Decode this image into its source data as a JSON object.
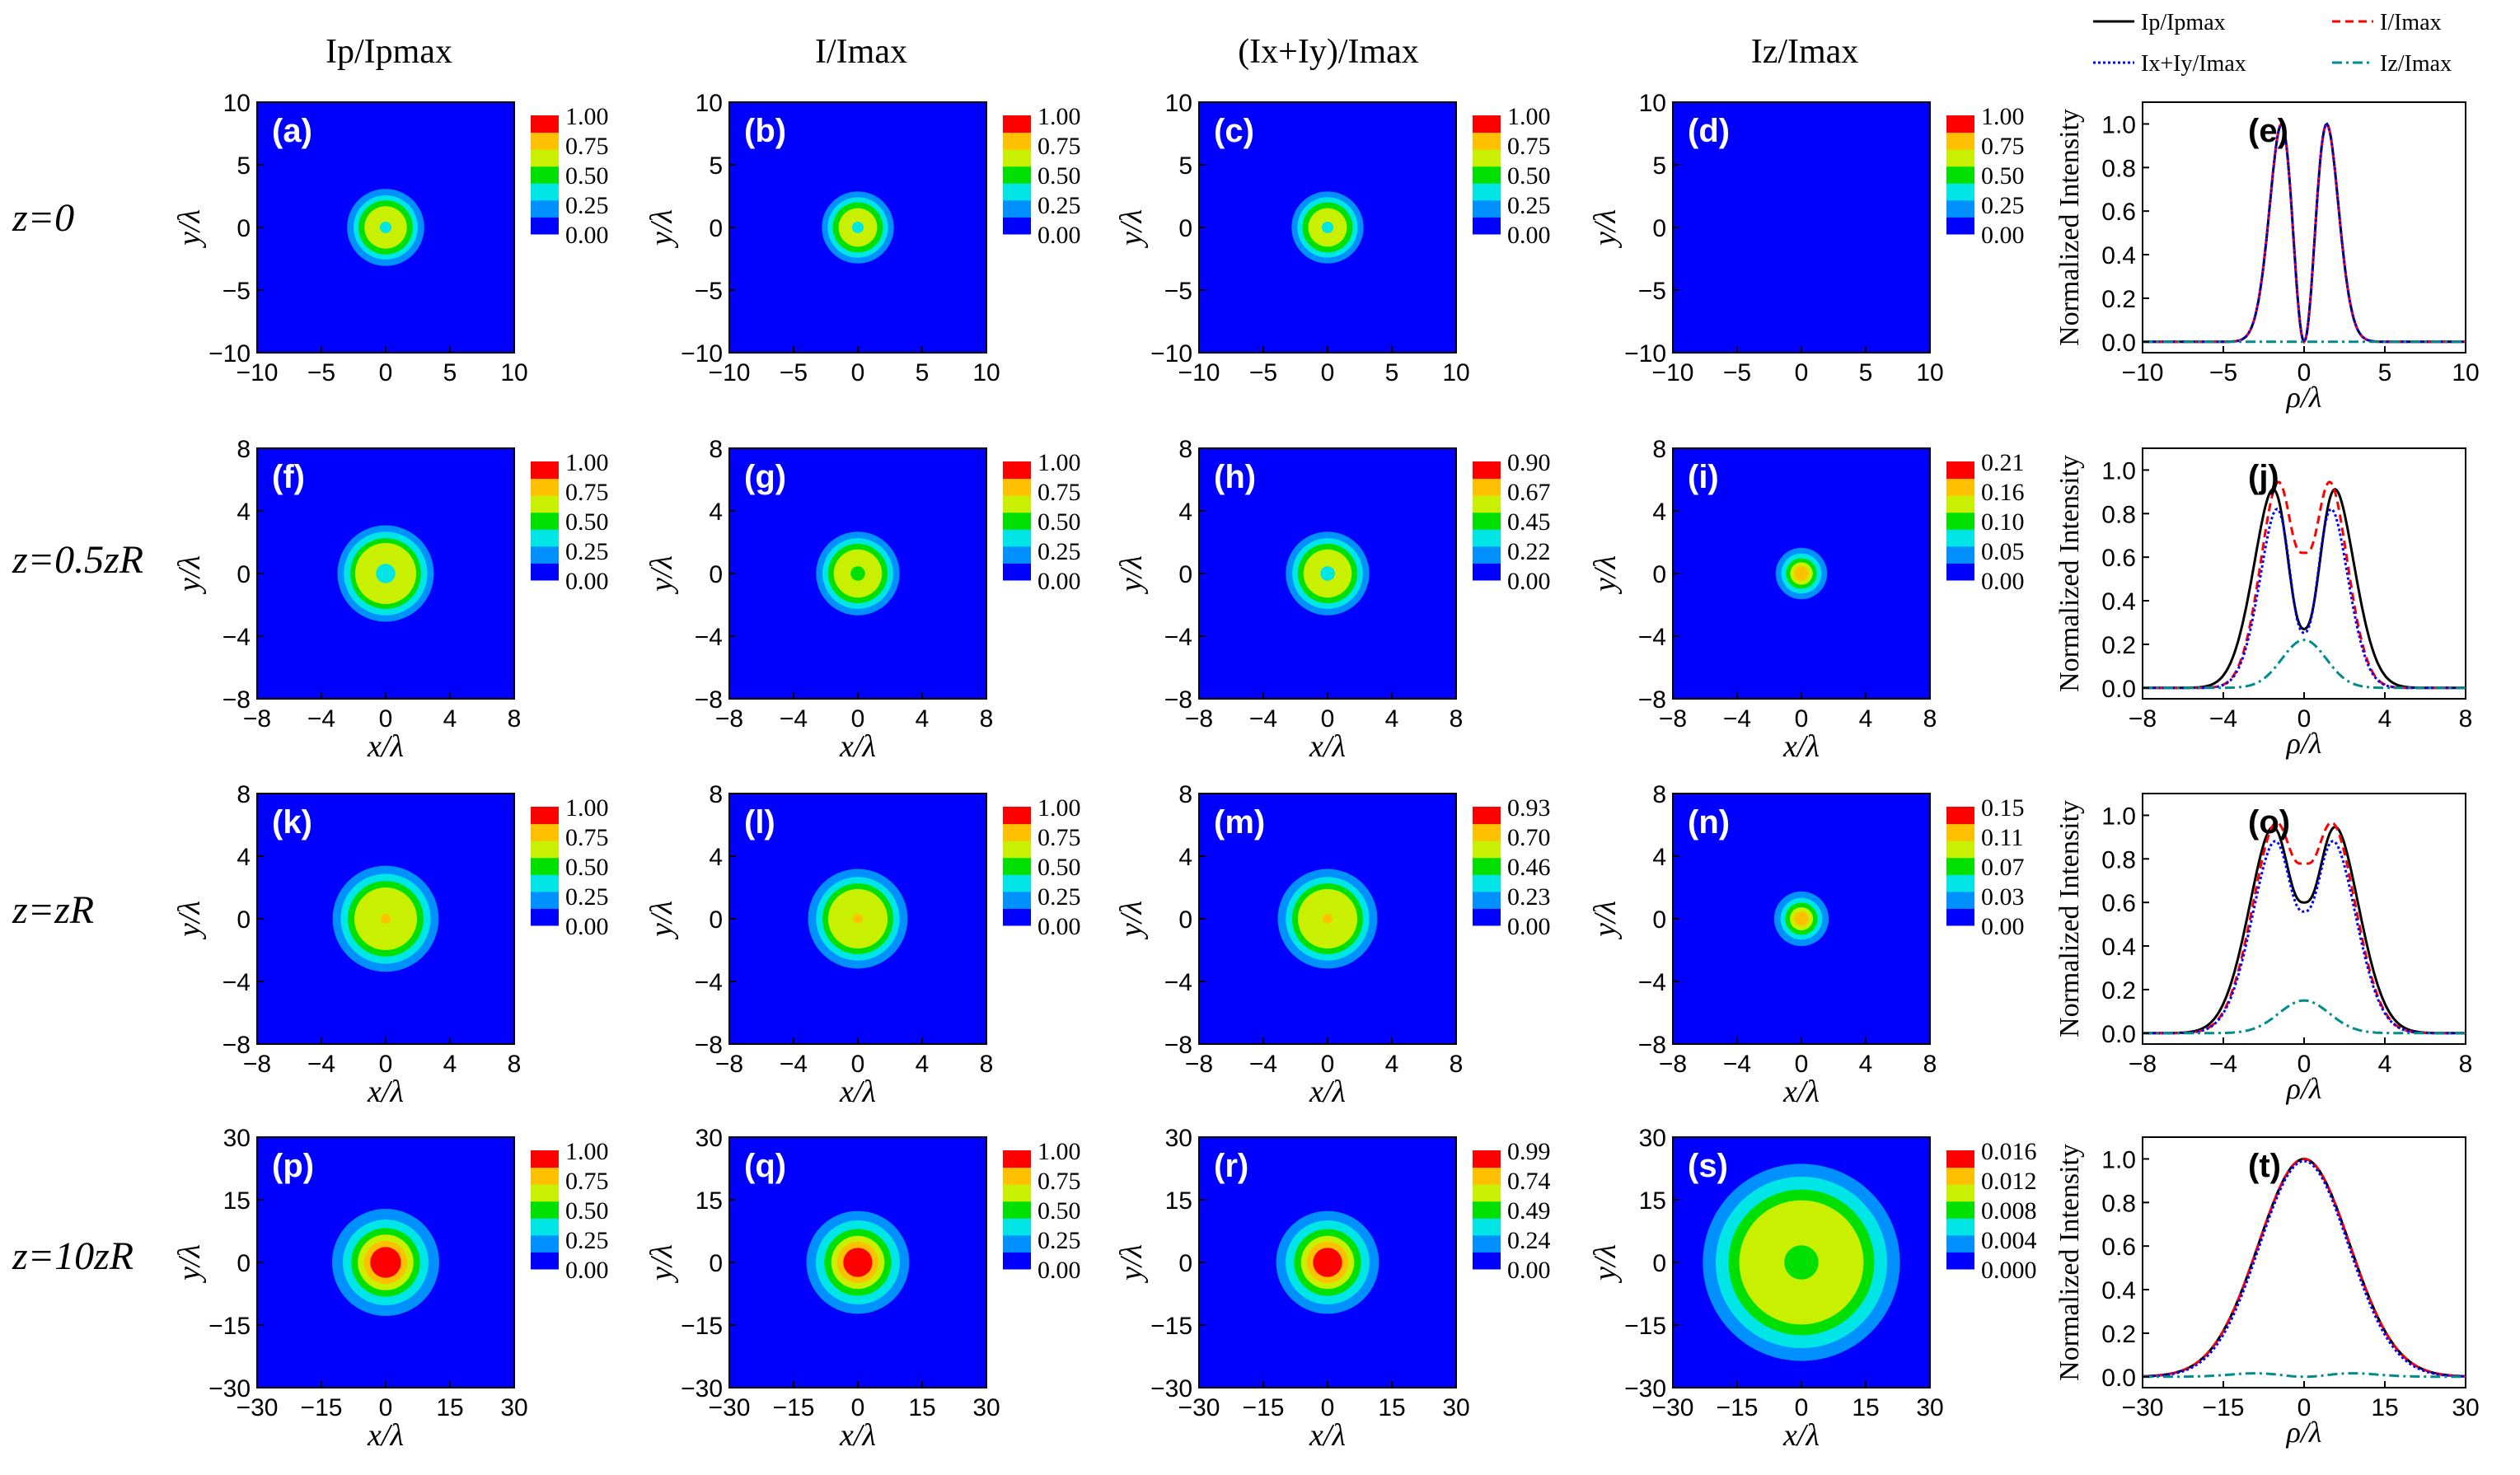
{
  "figure": {
    "column_titles": [
      "Ip/Ipmax",
      "I/Imax",
      "(Ix+Iy)/Imax",
      "Iz/Imax"
    ],
    "row_labels": [
      "z=0",
      "z=0.5zR",
      "z=zR",
      "z=10zR"
    ],
    "colormap": [
      "#0000ff",
      "#0090ff",
      "#00e5e5",
      "#00e000",
      "#c8f000",
      "#ffc000",
      "#ff0000"
    ],
    "background_color": "#0000ff"
  },
  "chart_data": [
    {
      "type": "heatmap",
      "panel": "(a)",
      "row": 0,
      "col": 0,
      "title": "Ip/Ipmax",
      "xlabel": "",
      "ylabel": "y/λ",
      "xlim": [
        -10,
        10
      ],
      "ylim": [
        -10,
        10
      ],
      "xticks": [
        -10,
        -5,
        0,
        5,
        10
      ],
      "yticks": [
        -10,
        -5,
        0,
        5,
        10
      ],
      "colorbar_ticks": [
        "1.00",
        "0.75",
        "0.50",
        "0.25",
        "0.00"
      ],
      "rings_outer_radius": [
        3.0,
        2.5,
        2.1,
        1.65
      ],
      "center_radius": 0.45,
      "center_level": 2
    },
    {
      "type": "heatmap",
      "panel": "(b)",
      "row": 0,
      "col": 1,
      "title": "I/Imax",
      "xlabel": "",
      "ylabel": "y/λ",
      "xlim": [
        -10,
        10
      ],
      "ylim": [
        -10,
        10
      ],
      "xticks": [
        -10,
        -5,
        0,
        5,
        10
      ],
      "yticks": [
        -10,
        -5,
        0,
        5,
        10
      ],
      "colorbar_ticks": [
        "1.00",
        "0.75",
        "0.50",
        "0.25",
        "0.00"
      ],
      "rings_outer_radius": [
        2.8,
        2.35,
        1.95,
        1.5
      ],
      "center_radius": 0.45,
      "center_level": 2
    },
    {
      "type": "heatmap",
      "panel": "(c)",
      "row": 0,
      "col": 2,
      "title": "(Ix+Iy)/Imax",
      "xlabel": "",
      "ylabel": "y/λ",
      "xlim": [
        -10,
        10
      ],
      "ylim": [
        -10,
        10
      ],
      "xticks": [
        -10,
        -5,
        0,
        5,
        10
      ],
      "yticks": [
        -10,
        -5,
        0,
        5,
        10
      ],
      "colorbar_ticks": [
        "1.00",
        "0.75",
        "0.50",
        "0.25",
        "0.00"
      ],
      "rings_outer_radius": [
        2.8,
        2.35,
        1.95,
        1.5
      ],
      "center_radius": 0.45,
      "center_level": 2
    },
    {
      "type": "heatmap",
      "panel": "(d)",
      "row": 0,
      "col": 3,
      "title": "Iz/Imax",
      "xlabel": "",
      "ylabel": "y/λ",
      "xlim": [
        -10,
        10
      ],
      "ylim": [
        -10,
        10
      ],
      "xticks": [
        -10,
        -5,
        0,
        5,
        10
      ],
      "yticks": [
        -10,
        -5,
        0,
        5,
        10
      ],
      "colorbar_ticks": [
        "1.00",
        "0.75",
        "0.50",
        "0.25",
        "0.00"
      ],
      "rings_outer_radius": [],
      "center_radius": 0,
      "center_level": 0
    },
    {
      "type": "line",
      "panel": "(e)",
      "row": 0,
      "xlabel": "ρ/λ",
      "ylabel": "Normalized Intensity",
      "xlim": [
        -10,
        10
      ],
      "ylim": [
        -0.05,
        1.1
      ],
      "xticks": [
        -10,
        -5,
        0,
        5,
        10
      ],
      "yticks": [
        0.0,
        0.2,
        0.4,
        0.6,
        0.8,
        1.0
      ],
      "legend": [
        "Ip/Ipmax",
        "I/Imax",
        "Ix+Iy/Imax",
        "Iz/Imax"
      ],
      "series": [
        {
          "name": "Ip/Ipmax",
          "kind": "ring",
          "peak": 1.4,
          "width": 0.8,
          "center": 0.0,
          "scale": 1.0
        },
        {
          "name": "I/Imax",
          "kind": "ring",
          "peak": 1.4,
          "width": 0.8,
          "center": 0.0,
          "scale": 1.0
        },
        {
          "name": "Ix+Iy/Imax",
          "kind": "ring",
          "peak": 1.4,
          "width": 0.8,
          "center": 0.0,
          "scale": 1.0
        },
        {
          "name": "Iz/Imax",
          "kind": "ring",
          "peak": 1.4,
          "width": 0.8,
          "center": 0.0,
          "scale": 0.0
        }
      ]
    },
    {
      "type": "heatmap",
      "panel": "(f)",
      "row": 1,
      "col": 0,
      "title": "",
      "xlabel": "x/λ",
      "ylabel": "y/λ",
      "xlim": [
        -8,
        8
      ],
      "ylim": [
        -8,
        8
      ],
      "xticks": [
        -8,
        -4,
        0,
        4,
        8
      ],
      "yticks": [
        -8,
        -4,
        0,
        4,
        8
      ],
      "colorbar_ticks": [
        "1.00",
        "0.75",
        "0.50",
        "0.25",
        "0.00"
      ],
      "rings_outer_radius": [
        3.0,
        2.6,
        2.2,
        1.9
      ],
      "center_radius": 0.6,
      "center_level": 2
    },
    {
      "type": "heatmap",
      "panel": "(g)",
      "row": 1,
      "col": 1,
      "title": "",
      "xlabel": "x/λ",
      "ylabel": "y/λ",
      "xlim": [
        -8,
        8
      ],
      "ylim": [
        -8,
        8
      ],
      "xticks": [
        -8,
        -4,
        0,
        4,
        8
      ],
      "yticks": [
        -8,
        -4,
        0,
        4,
        8
      ],
      "colorbar_ticks": [
        "1.00",
        "0.75",
        "0.50",
        "0.25",
        "0.00"
      ],
      "rings_outer_radius": [
        2.6,
        2.2,
        1.85,
        1.5
      ],
      "center_radius": 0.45,
      "center_level": 3
    },
    {
      "type": "heatmap",
      "panel": "(h)",
      "row": 1,
      "col": 2,
      "title": "",
      "xlabel": "x/λ",
      "ylabel": "y/λ",
      "xlim": [
        -8,
        8
      ],
      "ylim": [
        -8,
        8
      ],
      "xticks": [
        -8,
        -4,
        0,
        4,
        8
      ],
      "yticks": [
        -8,
        -4,
        0,
        4,
        8
      ],
      "colorbar_ticks": [
        "0.90",
        "0.67",
        "0.45",
        "0.22",
        "0.00"
      ],
      "rings_outer_radius": [
        2.6,
        2.2,
        1.85,
        1.5
      ],
      "center_radius": 0.45,
      "center_level": 2
    },
    {
      "type": "heatmap",
      "panel": "(i)",
      "row": 1,
      "col": 3,
      "title": "",
      "xlabel": "x/λ",
      "ylabel": "y/λ",
      "xlim": [
        -8,
        8
      ],
      "ylim": [
        -8,
        8
      ],
      "xticks": [
        -8,
        -4,
        0,
        4,
        8
      ],
      "yticks": [
        -8,
        -4,
        0,
        4,
        8
      ],
      "colorbar_ticks": [
        "0.21",
        "0.16",
        "0.10",
        "0.05",
        "0.00"
      ],
      "rings_outer_radius": [
        1.6,
        1.25,
        0.95,
        0.7,
        0.45
      ],
      "center_radius": 0,
      "center_level": 0
    },
    {
      "type": "line",
      "panel": "(j)",
      "row": 1,
      "xlabel": "ρ/λ",
      "ylabel": "Normalized Intensity",
      "xlim": [
        -8,
        8
      ],
      "ylim": [
        -0.05,
        1.1
      ],
      "xticks": [
        -8,
        -4,
        0,
        4,
        8
      ],
      "yticks": [
        0.0,
        0.2,
        0.4,
        0.6,
        0.8,
        1.0
      ],
      "legend": [],
      "series": [
        {
          "name": "Ip/Ipmax",
          "kind": "ring",
          "peak": 1.25,
          "width": 1.15,
          "center": 0.27,
          "scale": 1.0
        },
        {
          "name": "I/Imax",
          "kind": "ring",
          "peak": 1.1,
          "width": 1.0,
          "center": 0.62,
          "scale": 1.0
        },
        {
          "name": "Ix+Iy/Imax",
          "kind": "ring",
          "peak": 1.1,
          "width": 1.0,
          "center": 0.28,
          "scale": 0.9
        },
        {
          "name": "Iz/Imax",
          "kind": "gauss",
          "peak": 0.0,
          "width": 1.1,
          "center": 0.0,
          "scale": 0.22
        }
      ]
    },
    {
      "type": "heatmap",
      "panel": "(k)",
      "row": 2,
      "col": 0,
      "title": "",
      "xlabel": "x/λ",
      "ylabel": "y/λ",
      "xlim": [
        -8,
        8
      ],
      "ylim": [
        -8,
        8
      ],
      "xticks": [
        -8,
        -4,
        0,
        4,
        8
      ],
      "yticks": [
        -8,
        -4,
        0,
        4,
        8
      ],
      "colorbar_ticks": [
        "1.00",
        "0.75",
        "0.50",
        "0.25",
        "0.00"
      ],
      "rings_outer_radius": [
        3.3,
        2.8,
        2.35,
        1.95
      ],
      "center_radius": 0.3,
      "center_level": 5
    },
    {
      "type": "heatmap",
      "panel": "(l)",
      "row": 2,
      "col": 1,
      "title": "",
      "xlabel": "x/λ",
      "ylabel": "y/λ",
      "xlim": [
        -8,
        8
      ],
      "ylim": [
        -8,
        8
      ],
      "xticks": [
        -8,
        -4,
        0,
        4,
        8
      ],
      "yticks": [
        -8,
        -4,
        0,
        4,
        8
      ],
      "colorbar_ticks": [
        "1.00",
        "0.75",
        "0.50",
        "0.25",
        "0.00"
      ],
      "rings_outer_radius": [
        3.1,
        2.6,
        2.2,
        1.85
      ],
      "center_radius": 0.3,
      "center_level": 5
    },
    {
      "type": "heatmap",
      "panel": "(m)",
      "row": 2,
      "col": 2,
      "title": "",
      "xlabel": "x/λ",
      "ylabel": "y/λ",
      "xlim": [
        -8,
        8
      ],
      "ylim": [
        -8,
        8
      ],
      "xticks": [
        -8,
        -4,
        0,
        4,
        8
      ],
      "yticks": [
        -8,
        -4,
        0,
        4,
        8
      ],
      "colorbar_ticks": [
        "0.93",
        "0.70",
        "0.46",
        "0.23",
        "0.00"
      ],
      "rings_outer_radius": [
        3.1,
        2.6,
        2.2,
        1.85
      ],
      "center_radius": 0.3,
      "center_level": 5
    },
    {
      "type": "heatmap",
      "panel": "(n)",
      "row": 2,
      "col": 3,
      "title": "",
      "xlabel": "x/λ",
      "ylabel": "y/λ",
      "xlim": [
        -8,
        8
      ],
      "ylim": [
        -8,
        8
      ],
      "xticks": [
        -8,
        -4,
        0,
        4,
        8
      ],
      "yticks": [
        -8,
        -4,
        0,
        4,
        8
      ],
      "colorbar_ticks": [
        "0.15",
        "0.11",
        "0.07",
        "0.03",
        "0.00"
      ],
      "rings_outer_radius": [
        1.7,
        1.3,
        1.0,
        0.72,
        0.45
      ],
      "center_radius": 0,
      "center_level": 0
    },
    {
      "type": "line",
      "panel": "(o)",
      "row": 2,
      "xlabel": "ρ/λ",
      "ylabel": "Normalized Intensity",
      "xlim": [
        -8,
        8
      ],
      "ylim": [
        -0.05,
        1.1
      ],
      "xticks": [
        -8,
        -4,
        0,
        4,
        8
      ],
      "yticks": [
        0.0,
        0.2,
        0.4,
        0.6,
        0.8,
        1.0
      ],
      "legend": [],
      "series": [
        {
          "name": "Ip/Ipmax",
          "kind": "ring",
          "peak": 1.3,
          "width": 1.35,
          "center": 0.6,
          "scale": 1.0
        },
        {
          "name": "I/Imax",
          "kind": "ring",
          "peak": 1.2,
          "width": 1.3,
          "center": 0.78,
          "scale": 1.0
        },
        {
          "name": "Ix+Iy/Imax",
          "kind": "ring",
          "peak": 1.2,
          "width": 1.3,
          "center": 0.6,
          "scale": 0.93
        },
        {
          "name": "Iz/Imax",
          "kind": "gauss",
          "peak": 0.0,
          "width": 1.25,
          "center": 0.0,
          "scale": 0.15
        }
      ]
    },
    {
      "type": "heatmap",
      "panel": "(p)",
      "row": 3,
      "col": 0,
      "title": "",
      "xlabel": "x/λ",
      "ylabel": "y/λ",
      "xlim": [
        -30,
        30
      ],
      "ylim": [
        -30,
        30
      ],
      "xticks": [
        -30,
        -15,
        0,
        15,
        30
      ],
      "yticks": [
        -30,
        -15,
        0,
        15,
        30
      ],
      "colorbar_ticks": [
        "1.00",
        "0.75",
        "0.50",
        "0.25",
        "0.00"
      ],
      "rings_outer_radius": [
        12.5,
        10.0,
        8.0,
        6.5,
        5.0,
        3.6
      ],
      "center_radius": 0,
      "center_level": 0
    },
    {
      "type": "heatmap",
      "panel": "(q)",
      "row": 3,
      "col": 1,
      "title": "",
      "xlabel": "x/λ",
      "ylabel": "y/λ",
      "xlim": [
        -30,
        30
      ],
      "ylim": [
        -30,
        30
      ],
      "xticks": [
        -30,
        -15,
        0,
        15,
        30
      ],
      "yticks": [
        -30,
        -15,
        0,
        15,
        30
      ],
      "colorbar_ticks": [
        "1.00",
        "0.75",
        "0.50",
        "0.25",
        "0.00"
      ],
      "rings_outer_radius": [
        12.0,
        9.8,
        7.8,
        6.2,
        4.8,
        3.4
      ],
      "center_radius": 0,
      "center_level": 0
    },
    {
      "type": "heatmap",
      "panel": "(r)",
      "row": 3,
      "col": 2,
      "title": "",
      "xlabel": "x/λ",
      "ylabel": "y/λ",
      "xlim": [
        -30,
        30
      ],
      "ylim": [
        -30,
        30
      ],
      "xticks": [
        -30,
        -15,
        0,
        15,
        30
      ],
      "yticks": [
        -30,
        -15,
        0,
        15,
        30
      ],
      "colorbar_ticks": [
        "0.99",
        "0.74",
        "0.49",
        "0.24",
        "0.00"
      ],
      "rings_outer_radius": [
        12.0,
        9.8,
        7.8,
        6.2,
        4.8,
        3.4
      ],
      "center_radius": 0,
      "center_level": 0
    },
    {
      "type": "heatmap",
      "panel": "(s)",
      "row": 3,
      "col": 3,
      "title": "",
      "xlabel": "x/λ",
      "ylabel": "y/λ",
      "xlim": [
        -30,
        30
      ],
      "ylim": [
        -30,
        30
      ],
      "xticks": [
        -30,
        -15,
        0,
        15,
        30
      ],
      "yticks": [
        -30,
        -15,
        0,
        15,
        30
      ],
      "colorbar_ticks": [
        "0.016",
        "0.012",
        "0.008",
        "0.004",
        "0.000"
      ],
      "rings_outer_radius": [
        23.0,
        20.0,
        17.0,
        14.5
      ],
      "center_radius": 4.0,
      "center_level": 3
    },
    {
      "type": "line",
      "panel": "(t)",
      "row": 3,
      "xlabel": "ρ/λ",
      "ylabel": "Normalized Intensity",
      "xlim": [
        -30,
        30
      ],
      "ylim": [
        -0.05,
        1.1
      ],
      "xticks": [
        -30,
        -15,
        0,
        15,
        30
      ],
      "yticks": [
        0.0,
        0.2,
        0.4,
        0.6,
        0.8,
        1.0
      ],
      "legend": [],
      "series": [
        {
          "name": "Ip/Ipmax",
          "kind": "gauss",
          "peak": 0.0,
          "width": 8.5,
          "center": 0.0,
          "scale": 1.0
        },
        {
          "name": "I/Imax",
          "kind": "gauss",
          "peak": 0.0,
          "width": 8.5,
          "center": 0.0,
          "scale": 1.0
        },
        {
          "name": "Ix+Iy/Imax",
          "kind": "gauss",
          "peak": 0.0,
          "width": 8.3,
          "center": 0.0,
          "scale": 0.99
        },
        {
          "name": "Iz/Imax",
          "kind": "ring",
          "peak": 9.0,
          "width": 6.0,
          "center": 0.0,
          "scale": 0.016
        }
      ]
    }
  ]
}
